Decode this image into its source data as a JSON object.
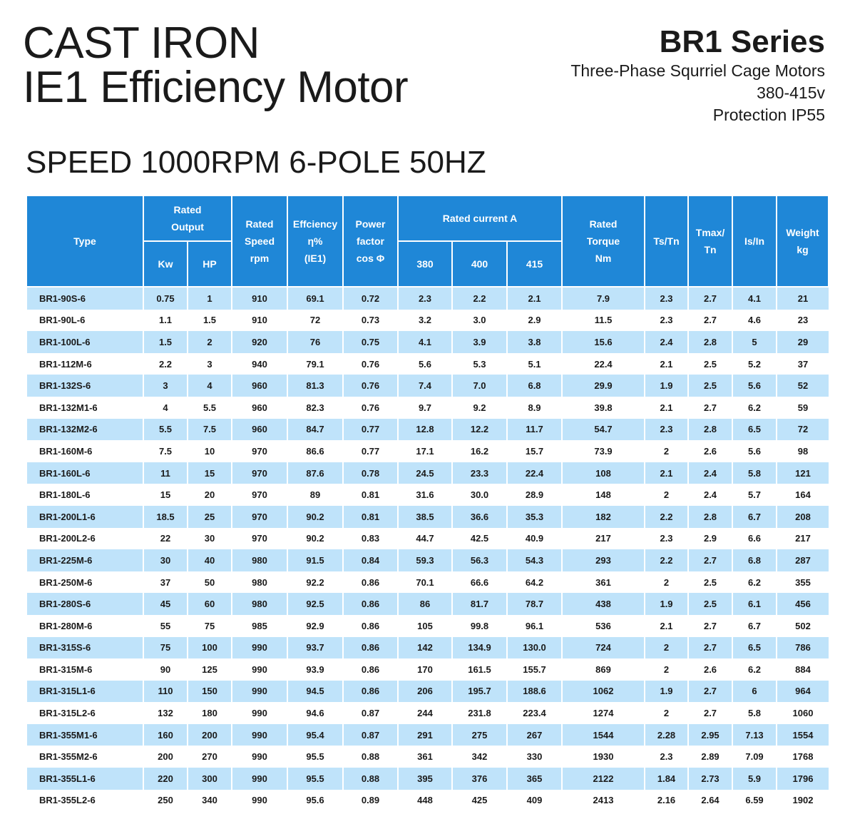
{
  "title": {
    "line1": "CAST IRON",
    "line2": "IE1 Efficiency Motor"
  },
  "series": {
    "name": "BR1 Series",
    "line1": "Three-Phase Squrriel Cage Motors",
    "line2": "380-415v",
    "line3": "Protection IP55"
  },
  "speed": "SPEED 1000RPM 6-POLE 50HZ",
  "header": {
    "type": "Type",
    "rated_output": [
      "Rated",
      "Output"
    ],
    "kw": "Kw",
    "hp": "HP",
    "speed": [
      "Rated",
      "Speed",
      "rpm"
    ],
    "efficiency": [
      "Effciency",
      "η%",
      "(IE1)"
    ],
    "pf": [
      "Power",
      "factor",
      "cos Φ"
    ],
    "current": "Rated current A",
    "v380": "380",
    "v400": "400",
    "v415": "415",
    "torque": [
      "Rated",
      "Torque",
      "Nm"
    ],
    "tstn": "Ts/Tn",
    "tmax": [
      "Tmax/",
      "Tn"
    ],
    "isin": "Is/In",
    "weight": [
      "Weight",
      "kg"
    ]
  },
  "rows": [
    [
      "BR1-90S-6",
      "0.75",
      "1",
      "910",
      "69.1",
      "0.72",
      "2.3",
      "2.2",
      "2.1",
      "7.9",
      "2.3",
      "2.7",
      "4.1",
      "21"
    ],
    [
      "BR1-90L-6",
      "1.1",
      "1.5",
      "910",
      "72",
      "0.73",
      "3.2",
      "3.0",
      "2.9",
      "11.5",
      "2.3",
      "2.7",
      "4.6",
      "23"
    ],
    [
      "BR1-100L-6",
      "1.5",
      "2",
      "920",
      "76",
      "0.75",
      "4.1",
      "3.9",
      "3.8",
      "15.6",
      "2.4",
      "2.8",
      "5",
      "29"
    ],
    [
      "BR1-112M-6",
      "2.2",
      "3",
      "940",
      "79.1",
      "0.76",
      "5.6",
      "5.3",
      "5.1",
      "22.4",
      "2.1",
      "2.5",
      "5.2",
      "37"
    ],
    [
      "BR1-132S-6",
      "3",
      "4",
      "960",
      "81.3",
      "0.76",
      "7.4",
      "7.0",
      "6.8",
      "29.9",
      "1.9",
      "2.5",
      "5.6",
      "52"
    ],
    [
      "BR1-132M1-6",
      "4",
      "5.5",
      "960",
      "82.3",
      "0.76",
      "9.7",
      "9.2",
      "8.9",
      "39.8",
      "2.1",
      "2.7",
      "6.2",
      "59"
    ],
    [
      "BR1-132M2-6",
      "5.5",
      "7.5",
      "960",
      "84.7",
      "0.77",
      "12.8",
      "12.2",
      "11.7",
      "54.7",
      "2.3",
      "2.8",
      "6.5",
      "72"
    ],
    [
      "BR1-160M-6",
      "7.5",
      "10",
      "970",
      "86.6",
      "0.77",
      "17.1",
      "16.2",
      "15.7",
      "73.9",
      "2",
      "2.6",
      "5.6",
      "98"
    ],
    [
      "BR1-160L-6",
      "11",
      "15",
      "970",
      "87.6",
      "0.78",
      "24.5",
      "23.3",
      "22.4",
      "108",
      "2.1",
      "2.4",
      "5.8",
      "121"
    ],
    [
      "BR1-180L-6",
      "15",
      "20",
      "970",
      "89",
      "0.81",
      "31.6",
      "30.0",
      "28.9",
      "148",
      "2",
      "2.4",
      "5.7",
      "164"
    ],
    [
      "BR1-200L1-6",
      "18.5",
      "25",
      "970",
      "90.2",
      "0.81",
      "38.5",
      "36.6",
      "35.3",
      "182",
      "2.2",
      "2.8",
      "6.7",
      "208"
    ],
    [
      "BR1-200L2-6",
      "22",
      "30",
      "970",
      "90.2",
      "0.83",
      "44.7",
      "42.5",
      "40.9",
      "217",
      "2.3",
      "2.9",
      "6.6",
      "217"
    ],
    [
      "BR1-225M-6",
      "30",
      "40",
      "980",
      "91.5",
      "0.84",
      "59.3",
      "56.3",
      "54.3",
      "293",
      "2.2",
      "2.7",
      "6.8",
      "287"
    ],
    [
      "BR1-250M-6",
      "37",
      "50",
      "980",
      "92.2",
      "0.86",
      "70.1",
      "66.6",
      "64.2",
      "361",
      "2",
      "2.5",
      "6.2",
      "355"
    ],
    [
      "BR1-280S-6",
      "45",
      "60",
      "980",
      "92.5",
      "0.86",
      "86",
      "81.7",
      "78.7",
      "438",
      "1.9",
      "2.5",
      "6.1",
      "456"
    ],
    [
      "BR1-280M-6",
      "55",
      "75",
      "985",
      "92.9",
      "0.86",
      "105",
      "99.8",
      "96.1",
      "536",
      "2.1",
      "2.7",
      "6.7",
      "502"
    ],
    [
      "BR1-315S-6",
      "75",
      "100",
      "990",
      "93.7",
      "0.86",
      "142",
      "134.9",
      "130.0",
      "724",
      "2",
      "2.7",
      "6.5",
      "786"
    ],
    [
      "BR1-315M-6",
      "90",
      "125",
      "990",
      "93.9",
      "0.86",
      "170",
      "161.5",
      "155.7",
      "869",
      "2",
      "2.6",
      "6.2",
      "884"
    ],
    [
      "BR1-315L1-6",
      "110",
      "150",
      "990",
      "94.5",
      "0.86",
      "206",
      "195.7",
      "188.6",
      "1062",
      "1.9",
      "2.7",
      "6",
      "964"
    ],
    [
      "BR1-315L2-6",
      "132",
      "180",
      "990",
      "94.6",
      "0.87",
      "244",
      "231.8",
      "223.4",
      "1274",
      "2",
      "2.7",
      "5.8",
      "1060"
    ],
    [
      "BR1-355M1-6",
      "160",
      "200",
      "990",
      "95.4",
      "0.87",
      "291",
      "275",
      "267",
      "1544",
      "2.28",
      "2.95",
      "7.13",
      "1554"
    ],
    [
      "BR1-355M2-6",
      "200",
      "270",
      "990",
      "95.5",
      "0.88",
      "361",
      "342",
      "330",
      "1930",
      "2.3",
      "2.89",
      "7.09",
      "1768"
    ],
    [
      "BR1-355L1-6",
      "220",
      "300",
      "990",
      "95.5",
      "0.88",
      "395",
      "376",
      "365",
      "2122",
      "1.84",
      "2.73",
      "5.9",
      "1796"
    ],
    [
      "BR1-355L2-6",
      "250",
      "340",
      "990",
      "95.6",
      "0.89",
      "448",
      "425",
      "409",
      "2413",
      "2.16",
      "2.64",
      "6.59",
      "1902"
    ]
  ],
  "colors": {
    "header_bg": "#1f87d7",
    "stripe": "#bfe3fa"
  }
}
